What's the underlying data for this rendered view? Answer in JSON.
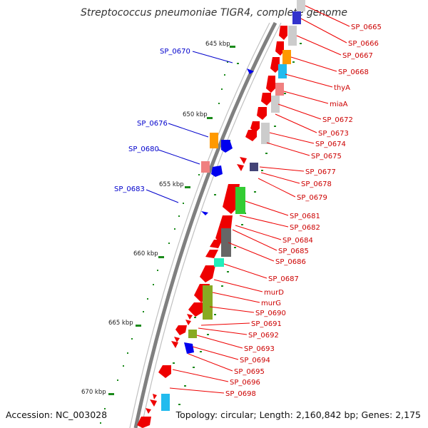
{
  "title": "Streptococcus pneumoniae TIGR4, complete genome",
  "footer": {
    "accession": "Accession: NC_003028",
    "summary": "Topology: circular; Length: 2,160,842 bp; Genes: 2,175"
  },
  "colors": {
    "backbone": "#808080",
    "forward_label": "#cc0000",
    "reverse_label": "#0000cc",
    "tick": "#1a8a1a"
  },
  "kbp_ticks": [
    "645 kbp",
    "650 kbp",
    "655 kbp",
    "660 kbp",
    "665 kbp",
    "670 kbp"
  ],
  "labels_right": [
    "SP_0665",
    "SP_0666",
    "SP_0667",
    "SP_0668",
    "thyA",
    "miaA",
    "SP_0672",
    "SP_0673",
    "SP_0674",
    "SP_0675",
    "SP_0677",
    "SP_0678",
    "SP_0679",
    "SP_0681",
    "SP_0682",
    "SP_0684",
    "SP_0685",
    "SP_0686",
    "SP_0687",
    "murD",
    "murG",
    "SP_0690",
    "SP_0691",
    "SP_0692",
    "SP_0693",
    "SP_0694",
    "SP_0695",
    "SP_0696",
    "SP_0698"
  ],
  "labels_left": [
    "SP_0670",
    "SP_0676",
    "SP_0680",
    "SP_0683"
  ]
}
